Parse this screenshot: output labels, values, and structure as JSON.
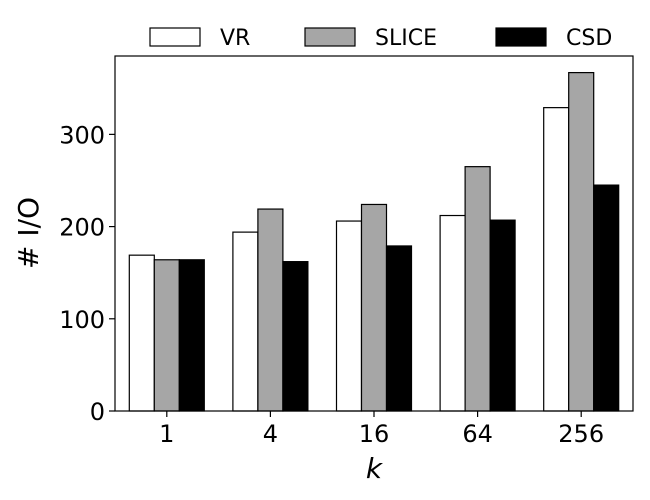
{
  "chart_data": {
    "type": "bar",
    "categories": [
      "1",
      "4",
      "16",
      "64",
      "256"
    ],
    "series": [
      {
        "name": "VR",
        "values": [
          169,
          194,
          206,
          212,
          329
        ],
        "color": "#ffffff"
      },
      {
        "name": "SLICE",
        "values": [
          164,
          219,
          224,
          265,
          367
        ],
        "color": "#a6a6a6"
      },
      {
        "name": "CSD",
        "values": [
          164,
          162,
          179,
          207,
          245
        ],
        "color": "#000000"
      }
    ],
    "xlabel": "k",
    "ylabel": "# I/O",
    "ylim": [
      0,
      385
    ],
    "yticks": [
      0,
      100,
      200,
      300
    ],
    "grid": false,
    "legend_position": "top"
  }
}
